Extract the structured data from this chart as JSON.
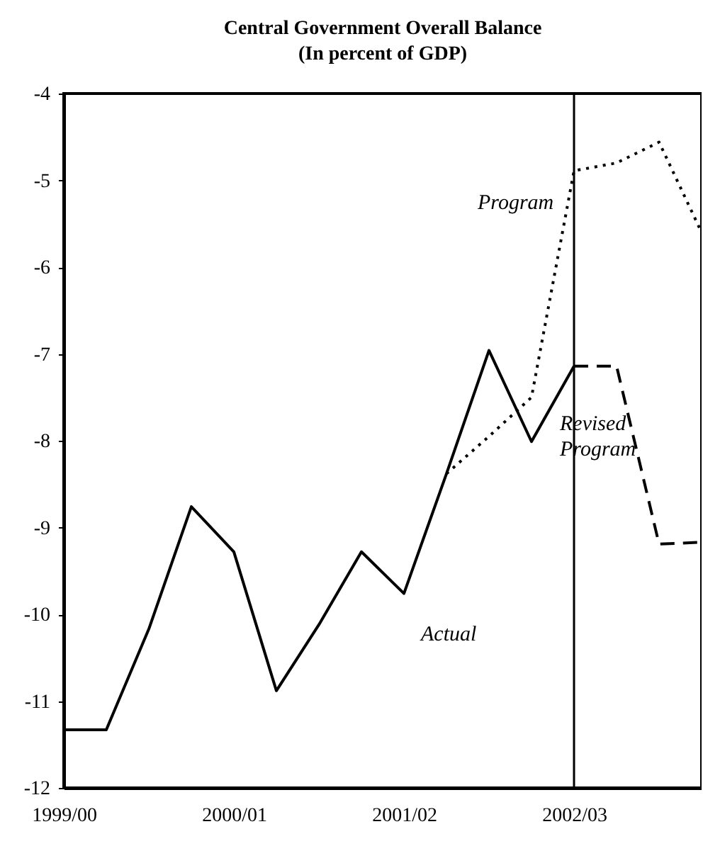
{
  "chart_data": {
    "type": "line",
    "title": "Central Government Overall Balance",
    "subtitle": "(In percent of GDP)",
    "categories": [
      "1999/00",
      null,
      null,
      null,
      "2000/01",
      null,
      null,
      null,
      "2001/02",
      null,
      null,
      null,
      "2002/03",
      null,
      null,
      null
    ],
    "series": [
      {
        "name": "Actual",
        "color": "#000000",
        "line_style": "solid",
        "values": [
          -11.33,
          -11.33,
          -10.17,
          -8.76,
          -9.28,
          -10.88,
          -10.12,
          -9.28,
          -9.76,
          -8.38,
          -6.96,
          -8.01,
          -7.14,
          null,
          null,
          null
        ]
      },
      {
        "name": "Program",
        "color": "#000000",
        "line_style": "dotted",
        "values": [
          null,
          null,
          null,
          null,
          null,
          null,
          null,
          null,
          null,
          -8.38,
          -7.95,
          -7.5,
          -4.89,
          -4.8,
          -4.56,
          -5.6
        ]
      },
      {
        "name": "Revised Program",
        "color": "#000000",
        "line_style": "dashed",
        "values": [
          null,
          null,
          null,
          null,
          null,
          null,
          null,
          null,
          null,
          null,
          null,
          null,
          -7.14,
          -7.14,
          -9.19,
          -9.17
        ]
      }
    ],
    "ylim": [
      -12,
      -4
    ],
    "yticks": [
      -12,
      -11,
      -10,
      -9,
      -8,
      -7,
      -6,
      -5,
      -4
    ],
    "ref_lines": [
      {
        "axis": "x",
        "value": "2002/03",
        "color": "#000000"
      }
    ],
    "marker": "none"
  }
}
